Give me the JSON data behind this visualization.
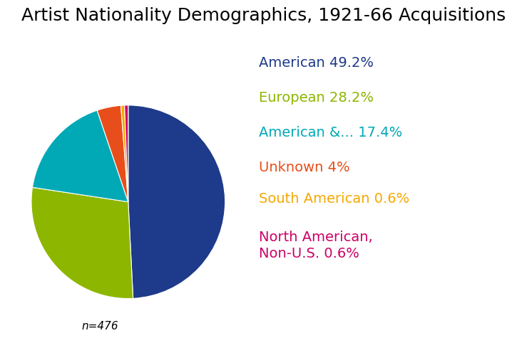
{
  "title": "Artist Nationality Demographics, 1921-66 Acquisitions",
  "title_fontsize": 18,
  "slices": [
    {
      "label": "American 49.2%",
      "value": 49.2,
      "color": "#1e3a8a"
    },
    {
      "label": "European 28.2%",
      "value": 28.2,
      "color": "#8db600"
    },
    {
      "label": "American &... 17.4%",
      "value": 17.4,
      "color": "#00a9b5"
    },
    {
      "label": "Unknown 4%",
      "value": 4.0,
      "color": "#e84e1b"
    },
    {
      "label": "South American 0.6%",
      "value": 0.6,
      "color": "#f5a800"
    },
    {
      "label": "North American,\nNon-U.S. 0.6%",
      "value": 0.6,
      "color": "#cc0066"
    }
  ],
  "legend_labels": [
    "American 49.2%",
    "European 28.2%",
    "American &... 17.4%",
    "Unknown 4%",
    "South American 0.6%",
    "North American,\nNon-U.S. 0.6%"
  ],
  "legend_colors": [
    "#1e3a8a",
    "#8db600",
    "#00a9b5",
    "#e84e1b",
    "#f5a800",
    "#cc0066"
  ],
  "legend_fontsizes": [
    14,
    14,
    14,
    14,
    14,
    14
  ],
  "n_label": "n=476",
  "background_color": "#ffffff",
  "startangle": 90
}
